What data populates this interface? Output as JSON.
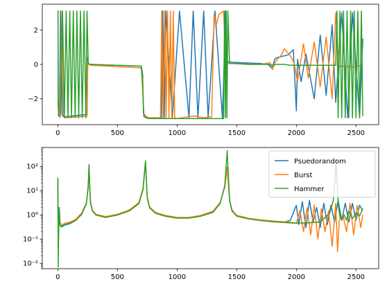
{
  "chart_data": [
    {
      "type": "line",
      "title": "",
      "xlabel": "",
      "ylabel": "",
      "xlim": [
        -130,
        2690
      ],
      "ylim": [
        -3.5,
        3.5
      ],
      "yscale": "linear",
      "grid": false,
      "xticks": [
        0,
        500,
        1000,
        1500,
        2000,
        2500
      ],
      "xtick_labels": [
        "0",
        "500",
        "1000",
        "1500",
        "2000",
        "2500"
      ],
      "yticks": [
        -2,
        0,
        2
      ],
      "ytick_labels": [
        "−2",
        "0",
        "2"
      ],
      "series": [
        {
          "name": "Psuedorandom",
          "color": "#1f77b4",
          "x": [
            0,
            2,
            3,
            4,
            6,
            15,
            23,
            40,
            55,
            245,
            250,
            255,
            270,
            700,
            712,
            718,
            740,
            800,
            870,
            880,
            893,
            906,
            960,
            1020,
            1100,
            1135,
            1175,
            1223,
            1260,
            1318,
            1380,
            1408,
            1414,
            1430,
            1470,
            1700,
            1760,
            1770,
            1798,
            1818,
            1840,
            1930,
            1975,
            2000,
            2010,
            2040,
            2080,
            2150,
            2200,
            2250,
            2300,
            2330,
            2380,
            2430,
            2470,
            2530,
            2557
          ],
          "y": [
            3.1,
            3.1,
            -1.5,
            -2.1,
            -3.0,
            -2.8,
            3.1,
            -3.0,
            -3.05,
            -2.9,
            0.4,
            0.05,
            0.0,
            -0.1,
            -0.6,
            -2.8,
            -3.1,
            -3.1,
            -3.1,
            3.1,
            -3.1,
            3.1,
            -3.1,
            3.1,
            -3.1,
            3.1,
            -3.1,
            3.1,
            -3.1,
            3.1,
            -3.1,
            3.1,
            0.1,
            0.15,
            0.12,
            0.05,
            0.0,
            -0.05,
            -0.25,
            0.3,
            0.4,
            0.55,
            0.85,
            -2.7,
            0.3,
            -1.0,
            0.6,
            -2.0,
            1.7,
            -1.8,
            2.3,
            -2.2,
            3.0,
            -3.1,
            3.0,
            -3.1,
            1.5
          ]
        },
        {
          "name": "Burst",
          "color": "#ff7f0e",
          "x": [
            0,
            2,
            3,
            5,
            10,
            20,
            35,
            50,
            60,
            245,
            252,
            260,
            275,
            700,
            712,
            720,
            760,
            860,
            872,
            884,
            896,
            908,
            920,
            932,
            944,
            956,
            968,
            980,
            1000,
            1040,
            1080,
            1150,
            1220,
            1290,
            1310,
            1330,
            1350,
            1390,
            1408,
            1420,
            1470,
            1700,
            1780,
            1800,
            1820,
            1840,
            1870,
            1900,
            1950,
            1980,
            2010,
            2060,
            2100,
            2150,
            2200,
            2250,
            2300,
            2330,
            2357,
            2400,
            2460,
            2520,
            2555
          ],
          "y": [
            3.0,
            3.0,
            -2.5,
            -2.2,
            -2.8,
            -3.1,
            3.1,
            -3.0,
            -3.1,
            -3.0,
            0.2,
            0.0,
            -0.05,
            -0.2,
            -0.9,
            -2.9,
            -3.1,
            -3.1,
            3.1,
            -3.1,
            3.1,
            -3.1,
            3.1,
            -3.1,
            3.1,
            -3.1,
            3.1,
            -3.1,
            -3.15,
            -3.1,
            -3.05,
            -3.0,
            -3.1,
            -3.05,
            2.9,
            2.3,
            2.9,
            3.1,
            0.1,
            0.05,
            0.05,
            0.0,
            0.1,
            -0.3,
            0.1,
            0.3,
            0.5,
            0.9,
            0.5,
            0.1,
            -1.0,
            1.2,
            -0.8,
            1.3,
            -1.3,
            1.6,
            -2.0,
            3.0,
            -0.1,
            -0.1,
            -0.15,
            -0.1,
            -0.05
          ]
        },
        {
          "name": "Hammer",
          "color": "#2ca02c",
          "x": [
            0,
            2,
            4,
            6,
            10,
            25,
            40,
            55,
            70,
            85,
            100,
            115,
            130,
            145,
            160,
            175,
            190,
            205,
            220,
            235,
            245,
            255,
            265,
            280,
            700,
            712,
            722,
            760,
            900,
            1000,
            1100,
            1200,
            1300,
            1390,
            1398,
            1405,
            1412,
            1418,
            1426,
            1440,
            1480,
            1600,
            1700,
            1780,
            1800,
            1830,
            1860,
            1880,
            1900,
            1950,
            2000,
            2100,
            2200,
            2300,
            2330,
            2340,
            2350,
            2365,
            2380,
            2395,
            2410,
            2425,
            2440,
            2455,
            2470,
            2485,
            2500,
            2515,
            2530,
            2545,
            2557
          ],
          "y": [
            3.1,
            3.1,
            -2.0,
            -2.9,
            -3.0,
            -2.9,
            3.1,
            -3.1,
            3.1,
            -3.1,
            3.1,
            -3.1,
            3.1,
            -3.1,
            3.1,
            -3.1,
            3.1,
            -3.1,
            3.1,
            -3.1,
            3.1,
            0.1,
            0.0,
            0.0,
            -0.1,
            -1.5,
            -3.05,
            -3.15,
            -3.15,
            -3.15,
            -3.15,
            -3.15,
            -3.15,
            -3.15,
            3.1,
            -3.1,
            3.1,
            -3.1,
            3.1,
            0.05,
            0.05,
            0.0,
            0.0,
            0.0,
            -0.05,
            0.0,
            0.0,
            0.0,
            0.0,
            -0.05,
            -0.05,
            -0.05,
            -0.05,
            -0.05,
            -0.05,
            3.1,
            -3.1,
            3.1,
            -3.1,
            3.1,
            -3.1,
            3.1,
            -3.1,
            3.1,
            -3.1,
            3.1,
            -3.1,
            3.1,
            -3.1,
            3.1,
            -3.0
          ]
        }
      ]
    },
    {
      "type": "line",
      "title": "",
      "xlabel": "",
      "ylabel": "",
      "xlim": [
        -130,
        2690
      ],
      "ylim": [
        0.006,
        600
      ],
      "yscale": "log",
      "grid": false,
      "legend": "top-right",
      "xticks": [
        0,
        500,
        1000,
        1500,
        2000,
        2500
      ],
      "xtick_labels": [
        "0",
        "500",
        "1000",
        "1500",
        "2000",
        "2500"
      ],
      "yticks": [
        0.01,
        0.1,
        1,
        10,
        100
      ],
      "ytick_labels": [
        "10⁻²",
        "10⁻¹",
        "10⁰",
        "10¹",
        "10²"
      ],
      "series": [
        {
          "name": "Psuedorandom",
          "color": "#1f77b4",
          "x": [
            0,
            2,
            4,
            6,
            8,
            12,
            18,
            25,
            40,
            60,
            100,
            150,
            200,
            240,
            255,
            262,
            268,
            275,
            290,
            320,
            400,
            500,
            600,
            680,
            715,
            735,
            742,
            750,
            770,
            820,
            900,
            1000,
            1100,
            1200,
            1300,
            1360,
            1400,
            1420,
            1432,
            1440,
            1460,
            1500,
            1600,
            1700,
            1800,
            1900,
            1950,
            2000,
            2020,
            2050,
            2080,
            2110,
            2140,
            2170,
            2200,
            2230,
            2260,
            2290,
            2320,
            2350,
            2380,
            2410,
            2440,
            2470,
            2500,
            2530,
            2557
          ],
          "y": [
            30,
            0.8,
            0.05,
            0.2,
            0.4,
            2.0,
            0.45,
            0.35,
            0.35,
            0.4,
            0.45,
            0.6,
            1.1,
            3.0,
            15,
            110,
            12,
            3.0,
            1.5,
            1.0,
            0.8,
            1.0,
            1.5,
            3.0,
            12,
            150,
            30,
            5,
            2.0,
            1.2,
            0.9,
            0.75,
            0.75,
            0.9,
            1.3,
            3.0,
            15,
            90,
            20,
            4,
            1.5,
            0.9,
            0.7,
            0.6,
            0.55,
            0.5,
            0.6,
            2.5,
            0.4,
            3.5,
            0.3,
            4.0,
            0.5,
            2.0,
            0.3,
            3.0,
            0.4,
            2.5,
            0.5,
            4.0,
            0.6,
            3.0,
            0.5,
            3.0,
            0.6,
            2.5,
            1.5
          ]
        },
        {
          "name": "Burst",
          "color": "#ff7f0e",
          "x": [
            0,
            2,
            4,
            6,
            8,
            12,
            18,
            25,
            40,
            60,
            100,
            150,
            200,
            240,
            255,
            262,
            268,
            275,
            290,
            320,
            400,
            500,
            600,
            680,
            715,
            735,
            742,
            750,
            770,
            820,
            900,
            1000,
            1100,
            1200,
            1300,
            1360,
            1400,
            1420,
            1430,
            1440,
            1460,
            1500,
            1600,
            1700,
            1800,
            1900,
            1950,
            2000,
            2030,
            2060,
            2090,
            2120,
            2150,
            2180,
            2210,
            2240,
            2270,
            2300,
            2330,
            2345,
            2360,
            2390,
            2420,
            2450,
            2480,
            2510,
            2540,
            2557
          ],
          "y": [
            25,
            0.6,
            0.04,
            0.3,
            0.5,
            1.5,
            0.5,
            0.4,
            0.4,
            0.45,
            0.5,
            0.65,
            1.2,
            3.2,
            16,
            100,
            13,
            3.2,
            1.6,
            1.05,
            0.85,
            1.05,
            1.6,
            3.2,
            13,
            140,
            32,
            5.5,
            2.1,
            1.25,
            0.95,
            0.78,
            0.78,
            0.95,
            1.4,
            3.2,
            14,
            80,
            18,
            4.2,
            1.6,
            0.95,
            0.72,
            0.62,
            0.56,
            0.52,
            0.5,
            0.45,
            1.5,
            0.2,
            2.0,
            0.15,
            2.5,
            0.1,
            1.8,
            0.2,
            1.5,
            0.05,
            3.0,
            0.03,
            0.6,
            1.0,
            0.2,
            3.0,
            0.15,
            2.5,
            0.3,
            1.0
          ]
        },
        {
          "name": "Hammer",
          "color": "#2ca02c",
          "x": [
            0,
            2,
            4,
            6,
            8,
            12,
            18,
            25,
            40,
            60,
            100,
            150,
            200,
            240,
            255,
            262,
            268,
            275,
            290,
            320,
            400,
            500,
            600,
            680,
            715,
            735,
            742,
            750,
            770,
            820,
            900,
            1000,
            1100,
            1200,
            1300,
            1360,
            1400,
            1420,
            1432,
            1440,
            1460,
            1500,
            1600,
            1700,
            1800,
            1900,
            2000,
            2100,
            2200,
            2280,
            2310,
            2325,
            2332,
            2340,
            2350,
            2365,
            2380,
            2400,
            2420,
            2440,
            2470,
            2500,
            2530,
            2557
          ],
          "y": [
            35,
            1.0,
            0.007,
            0.1,
            0.3,
            2.0,
            0.4,
            0.32,
            0.33,
            0.38,
            0.43,
            0.58,
            1.05,
            2.9,
            14,
            120,
            11,
            2.9,
            1.45,
            0.98,
            0.78,
            0.98,
            1.45,
            2.9,
            11,
            170,
            28,
            4.8,
            1.9,
            1.15,
            0.88,
            0.73,
            0.73,
            0.88,
            1.25,
            2.9,
            16,
            450,
            25,
            4.0,
            1.45,
            0.88,
            0.68,
            0.58,
            0.52,
            0.48,
            0.45,
            0.47,
            0.5,
            1.2,
            4.0,
            30,
            200,
            30,
            3.0,
            0.8,
            0.6,
            1.0,
            0.6,
            1.5,
            0.7,
            1.2,
            0.9,
            1.8
          ]
        }
      ]
    }
  ]
}
